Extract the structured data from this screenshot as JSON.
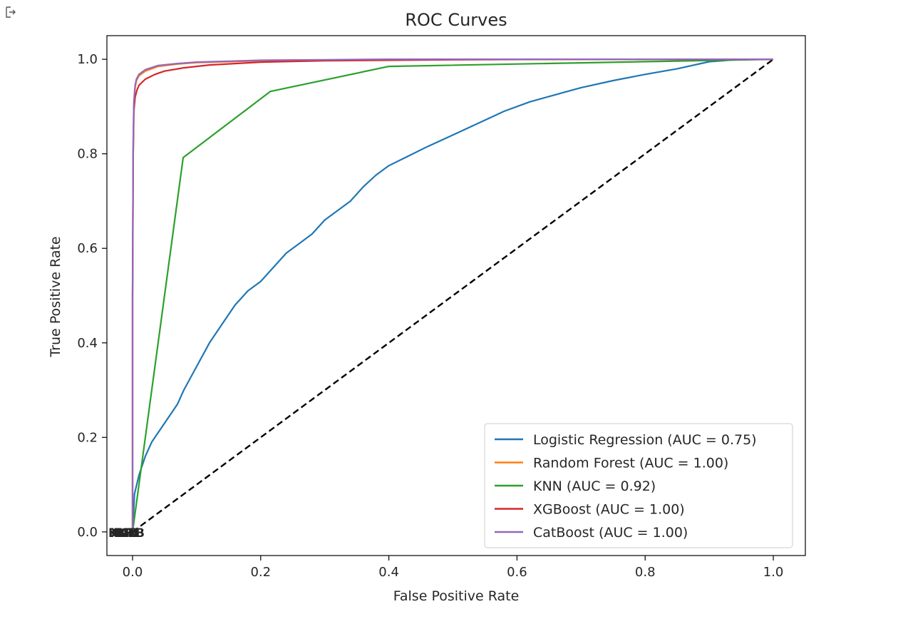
{
  "cell": {
    "output_icon": "output-arrow-icon"
  },
  "chart_data": {
    "type": "line",
    "title": "ROC Curves",
    "xlabel": "False Positive Rate",
    "ylabel": "True Positive Rate",
    "xlim": [
      -0.04,
      1.05
    ],
    "ylim": [
      -0.05,
      1.05
    ],
    "xticks": [
      0.0,
      0.2,
      0.4,
      0.6,
      0.8,
      1.0
    ],
    "yticks": [
      0.0,
      0.2,
      0.4,
      0.6,
      0.8,
      1.0
    ],
    "xtick_labels": [
      "0.0",
      "0.2",
      "0.4",
      "0.6",
      "0.8",
      "1.0"
    ],
    "ytick_labels": [
      "0.0",
      "0.2",
      "0.4",
      "0.6",
      "0.8",
      "1.0"
    ],
    "grid": false,
    "legend_position": "lower-right",
    "overlapping_point_labels": [
      "KNN",
      "XGB",
      "CatB",
      "RF",
      "LR"
    ],
    "series": [
      {
        "name": "Logistic Regression (AUC = 0.75)",
        "color": "#1f77b4",
        "x": [
          0,
          0.003,
          0.01,
          0.02,
          0.03,
          0.05,
          0.07,
          0.08,
          0.1,
          0.12,
          0.14,
          0.16,
          0.18,
          0.2,
          0.22,
          0.24,
          0.26,
          0.28,
          0.3,
          0.32,
          0.34,
          0.36,
          0.38,
          0.4,
          0.43,
          0.46,
          0.5,
          0.54,
          0.58,
          0.62,
          0.66,
          0.7,
          0.75,
          0.8,
          0.85,
          0.9,
          0.95,
          1.0
        ],
        "y": [
          0,
          0.08,
          0.12,
          0.16,
          0.19,
          0.23,
          0.27,
          0.3,
          0.35,
          0.4,
          0.44,
          0.48,
          0.51,
          0.53,
          0.56,
          0.59,
          0.61,
          0.63,
          0.66,
          0.68,
          0.7,
          0.73,
          0.755,
          0.775,
          0.795,
          0.815,
          0.84,
          0.865,
          0.89,
          0.91,
          0.925,
          0.94,
          0.955,
          0.968,
          0.98,
          0.995,
          1.0,
          1.0
        ]
      },
      {
        "name": "Random Forest (AUC = 1.00)",
        "color": "#ff7f0e",
        "x": [
          0,
          0.0,
          0.001,
          0.002,
          0.004,
          0.006,
          0.01,
          0.02,
          0.04,
          0.07,
          0.1,
          0.15,
          0.2,
          0.3,
          0.4,
          0.6,
          0.8,
          1.0
        ],
        "y": [
          0,
          0.5,
          0.8,
          0.9,
          0.94,
          0.955,
          0.965,
          0.975,
          0.985,
          0.99,
          0.993,
          0.995,
          0.997,
          0.998,
          0.999,
          1.0,
          1.0,
          1.0
        ]
      },
      {
        "name": "KNN (AUC = 0.92)",
        "color": "#2ca02c",
        "x": [
          0,
          0.079,
          0.215,
          0.4,
          1.0
        ],
        "y": [
          0,
          0.792,
          0.932,
          0.985,
          1.0
        ]
      },
      {
        "name": "XGBoost (AUC = 1.00)",
        "color": "#d62728",
        "x": [
          0,
          0.0,
          0.001,
          0.002,
          0.004,
          0.007,
          0.01,
          0.02,
          0.035,
          0.05,
          0.08,
          0.12,
          0.2,
          0.3,
          0.5,
          0.7,
          1.0
        ],
        "y": [
          0,
          0.5,
          0.8,
          0.89,
          0.92,
          0.935,
          0.945,
          0.958,
          0.968,
          0.975,
          0.982,
          0.988,
          0.994,
          0.997,
          0.999,
          1.0,
          1.0
        ]
      },
      {
        "name": "CatBoost (AUC = 1.00)",
        "color": "#9467bd",
        "x": [
          0,
          0.0,
          0.001,
          0.002,
          0.004,
          0.006,
          0.01,
          0.02,
          0.04,
          0.07,
          0.1,
          0.15,
          0.2,
          0.3,
          0.4,
          0.6,
          0.8,
          1.0
        ],
        "y": [
          0,
          0.5,
          0.82,
          0.91,
          0.945,
          0.958,
          0.968,
          0.978,
          0.987,
          0.991,
          0.994,
          0.996,
          0.998,
          0.999,
          1.0,
          1.0,
          1.0,
          1.0
        ]
      }
    ],
    "reference_line": {
      "x": [
        0,
        1
      ],
      "y": [
        0,
        1
      ],
      "style": "dashed",
      "color": "#000000"
    }
  }
}
